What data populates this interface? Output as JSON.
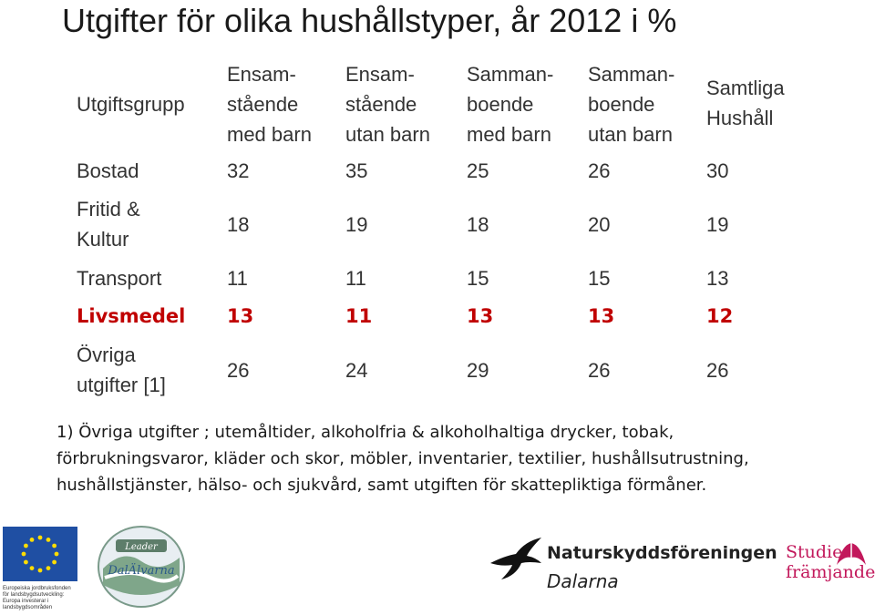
{
  "title": "Utgifter för olika hushållstyper, år 2012 i %",
  "table": {
    "header": {
      "group": "Utgiftsgrupp",
      "columns": [
        [
          "Ensam-",
          "stående",
          "med barn"
        ],
        [
          "Ensam-",
          "stående",
          "utan barn"
        ],
        [
          "Samman-",
          "boende",
          "med barn"
        ],
        [
          "Samman-",
          "boende",
          "utan barn"
        ],
        [
          "Samtliga",
          "Hushåll"
        ]
      ]
    },
    "rows": [
      {
        "label": [
          "Bostad"
        ],
        "values": [
          "32",
          "35",
          "25",
          "26",
          "30"
        ]
      },
      {
        "label": [
          "Fritid &",
          "Kultur"
        ],
        "values": [
          "18",
          "19",
          "18",
          "20",
          "19"
        ]
      },
      {
        "label": [
          "Transport"
        ],
        "values": [
          "11",
          "11",
          "15",
          "15",
          "13"
        ]
      },
      {
        "label": [
          "Livsmedel"
        ],
        "values": [
          "13",
          "11",
          "13",
          "13",
          "12"
        ]
      },
      {
        "label": [
          "Övriga",
          "utgifter [1]"
        ],
        "values": [
          "26",
          "24",
          "29",
          "26",
          "26"
        ]
      }
    ]
  },
  "footnote": [
    "1) Övriga utgifter ; utemåltider, alkoholfria & alkoholhaltiga drycker, tobak,",
    "förbrukningsvaror, kläder och skor, möbler, inventarier, textilier, hushållsutrustning,",
    "hushållstjänster, hälso- och sjukvård, samt utgiften för skattepliktiga förmåner."
  ],
  "logos": {
    "eu": {
      "label": "Europeiska jordbruksfonden för landsbygdsutveckling: Europa investerar i landsbygdsområden",
      "icon": "eu-flag-icon",
      "color": "#1f4fa3"
    },
    "leader": {
      "top": "Leader",
      "name": "DalÄlvarna",
      "icon": "leader-dalalvarna-logo",
      "color": "#2c5a8a"
    },
    "natur": {
      "name": "Naturskyddsföreningen",
      "sub": "Dalarna",
      "icon": "swift-bird-icon"
    },
    "studie": {
      "line1": "Studie",
      "line2": "främjandet",
      "icon": "studiefrajandet-logo",
      "color": "#c2185b"
    }
  },
  "colors": {
    "highlight": "#c00000",
    "text": "#333333"
  }
}
